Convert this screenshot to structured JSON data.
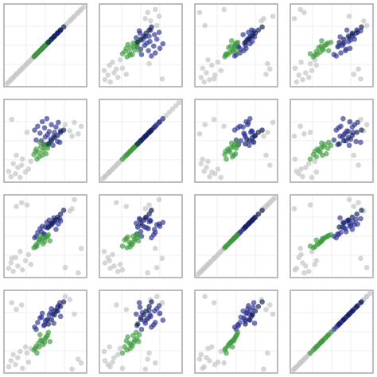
{
  "chart_data": {
    "type": "scatter",
    "title": "",
    "xlabel": "",
    "ylabel": "",
    "variables": [
      "",
      "",
      "",
      ""
    ],
    "grid": true,
    "legend": "none",
    "axis_range": [
      0,
      10
    ],
    "grid_ticks": [
      2.5,
      5,
      7.5
    ],
    "colors": {
      "grey_group": "#c8c8c8",
      "blue_group": "#2b2f8f",
      "green_group": "#3a9a3a",
      "dark_navy": "#0b1a52",
      "frame": "#a6a6a6",
      "grid": "#ececec"
    },
    "groups": [
      {
        "color_key": "grey_group",
        "vars": [
          [
            0.2,
            0.5,
            0.8,
            1.1,
            1.4,
            1.7,
            2.0,
            2.4,
            2.8,
            3.1,
            1.2,
            1.9,
            8.2,
            8.8,
            9.3,
            9.7,
            0.6,
            2.6,
            7.6,
            8.5
          ],
          [
            1.0,
            0.3,
            2.0,
            0.7,
            1.5,
            0.2,
            2.6,
            0.9,
            1.3,
            2.3,
            3.1,
            1.8,
            6.3,
            7.4,
            5.9,
            6.9,
            7.8,
            6.1,
            7.1,
            5.6
          ],
          [
            0.8,
            1.5,
            0.4,
            2.2,
            1.1,
            3.0,
            0.6,
            1.8,
            2.6,
            1.3,
            8.9,
            9.4,
            8.3,
            9.8,
            0.2,
            3.4,
            2.1,
            9.1,
            0.9,
            8.6
          ],
          [
            0.4,
            1.2,
            2.0,
            0.7,
            1.6,
            2.4,
            0.2,
            3.0,
            1.0,
            2.8,
            7.9,
            8.5,
            9.2,
            7.3,
            1.4,
            0.9,
            8.8,
            2.2,
            9.6,
            0.1
          ]
        ]
      },
      {
        "color_key": "blue_group",
        "vars": [
          [
            3.6,
            4.0,
            4.3,
            4.6,
            4.9,
            5.2,
            5.5,
            5.8,
            6.1,
            6.4,
            6.7,
            7.0,
            3.8,
            5.0,
            6.2,
            6.9,
            4.5,
            5.7,
            6.6,
            5.3,
            4.8,
            6.0
          ],
          [
            6.4,
            6.9,
            6.0,
            7.5,
            6.7,
            7.9,
            6.2,
            7.1,
            5.6,
            6.8,
            7.4,
            6.3,
            5.1,
            5.5,
            6.1,
            4.8,
            5.0,
            5.2,
            4.9,
            5.8,
            4.5,
            4.4
          ],
          [
            4.8,
            5.5,
            6.0,
            6.3,
            5.2,
            6.8,
            7.1,
            6.5,
            7.4,
            5.9,
            6.6,
            7.0,
            5.0,
            6.2,
            6.9,
            7.3,
            5.6,
            6.4,
            7.2,
            6.1,
            5.3,
            6.7
          ],
          [
            5.6,
            6.2,
            6.8,
            7.4,
            5.9,
            6.5,
            7.2,
            8.0,
            6.1,
            7.7,
            8.4,
            7.0,
            5.3,
            6.4,
            7.8,
            8.8,
            6.9,
            7.5,
            8.2,
            6.6,
            5.8,
            7.3
          ]
        ]
      },
      {
        "color_key": "green_group",
        "vars": [
          [
            3.5,
            3.8,
            4.1,
            4.4,
            4.7,
            5.0,
            5.3,
            5.6,
            3.9,
            4.6,
            5.4,
            4.2,
            3.7,
            5.1,
            4.9,
            4.3
          ],
          [
            3.2,
            3.9,
            3.5,
            4.2,
            3.7,
            4.5,
            4.0,
            4.7,
            2.6,
            3.1,
            4.4,
            2.9,
            3.6,
            3.3,
            4.1,
            4.8
          ],
          [
            3.5,
            3.9,
            4.2,
            4.6,
            4.0,
            4.8,
            5.0,
            4.4,
            3.7,
            4.7,
            5.2,
            4.5,
            3.6,
            4.9,
            4.3,
            5.1
          ],
          [
            2.6,
            3.1,
            3.5,
            3.9,
            3.3,
            4.1,
            4.5,
            3.7,
            2.2,
            3.8,
            4.9,
            3.0,
            2.8,
            4.3,
            3.6,
            4.6
          ]
        ]
      },
      {
        "color_key": "dark_navy",
        "vars": [
          [
            5.4,
            5.8,
            6.2,
            6.6,
            7.0,
            7.4
          ],
          [
            4.6,
            5.0,
            5.4,
            5.7,
            6.1,
            6.4
          ],
          [
            6.2,
            6.7,
            7.1,
            7.5,
            7.9,
            8.4
          ],
          [
            6.0,
            6.6,
            7.2,
            7.7,
            8.3,
            8.9
          ]
        ]
      }
    ]
  }
}
